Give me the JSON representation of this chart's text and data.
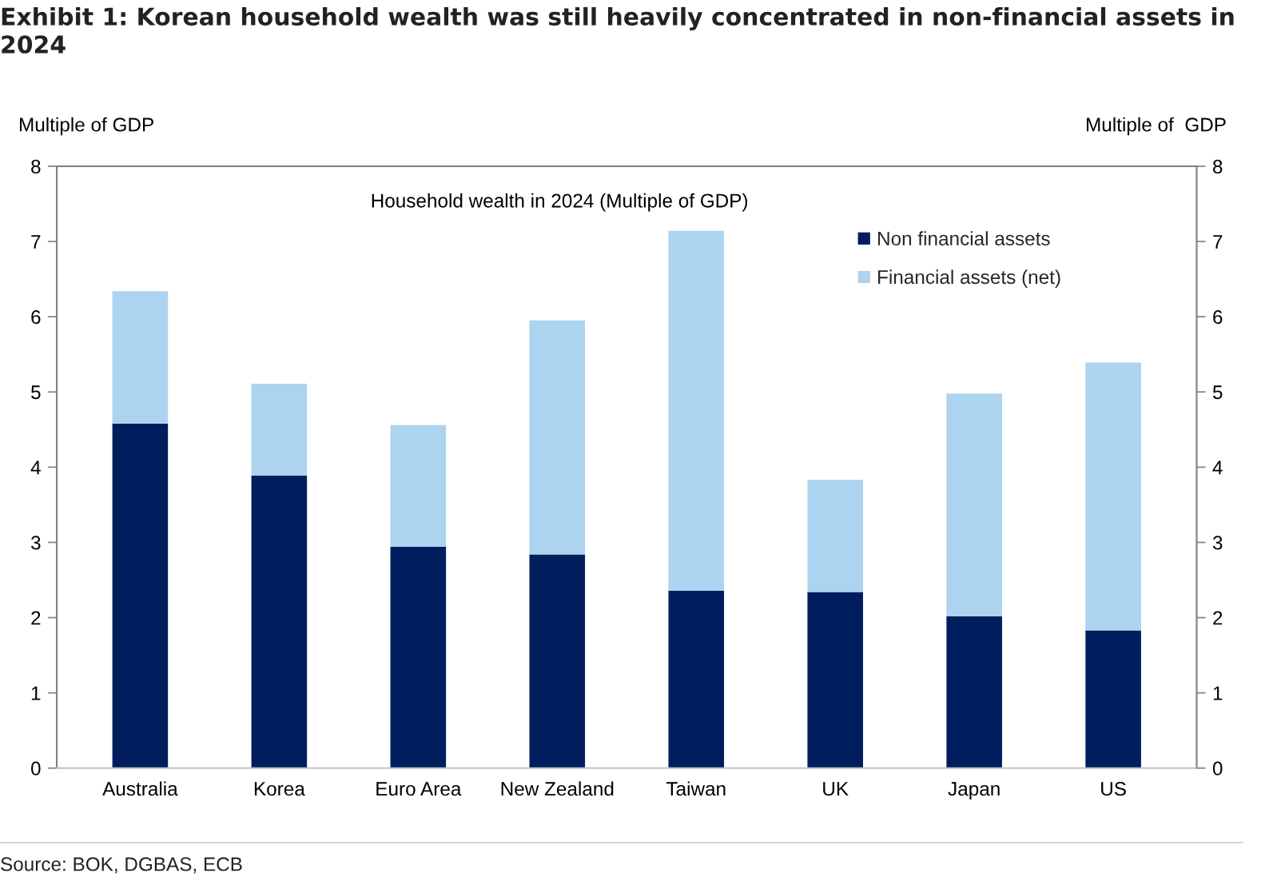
{
  "chart_data": {
    "type": "bar",
    "title": "Exhibit 1: Korean household wealth was still heavily concentrated in non-financial assets in 2024",
    "subtitle": "Household wealth in 2024 (Multiple of GDP)",
    "ylabel": "Multiple of GDP",
    "y2label": "Multiple of  GDP",
    "categories": [
      "Australia",
      "Korea",
      "Euro Area",
      "New Zealand",
      "Taiwan",
      "UK",
      "Japan",
      "US"
    ],
    "series": [
      {
        "name": "Non financial assets",
        "color": "#001e5e",
        "values": [
          4.58,
          3.89,
          2.94,
          2.84,
          2.36,
          2.34,
          2.02,
          1.83
        ]
      },
      {
        "name": "Financial assets (net)",
        "color": "#acd3ef",
        "values": [
          1.76,
          1.22,
          1.62,
          3.11,
          4.78,
          1.49,
          2.96,
          3.56
        ]
      }
    ],
    "stacked": true,
    "ylim": [
      0,
      8
    ],
    "yticks": [
      0,
      1,
      2,
      3,
      4,
      5,
      6,
      7,
      8
    ],
    "y2lim": [
      0,
      8
    ],
    "y2ticks": [
      0,
      1,
      2,
      3,
      4,
      5,
      6,
      7,
      8
    ],
    "legend": "top right",
    "annotations": [
      "Source: BOK, DGBAS, ECB"
    ]
  }
}
